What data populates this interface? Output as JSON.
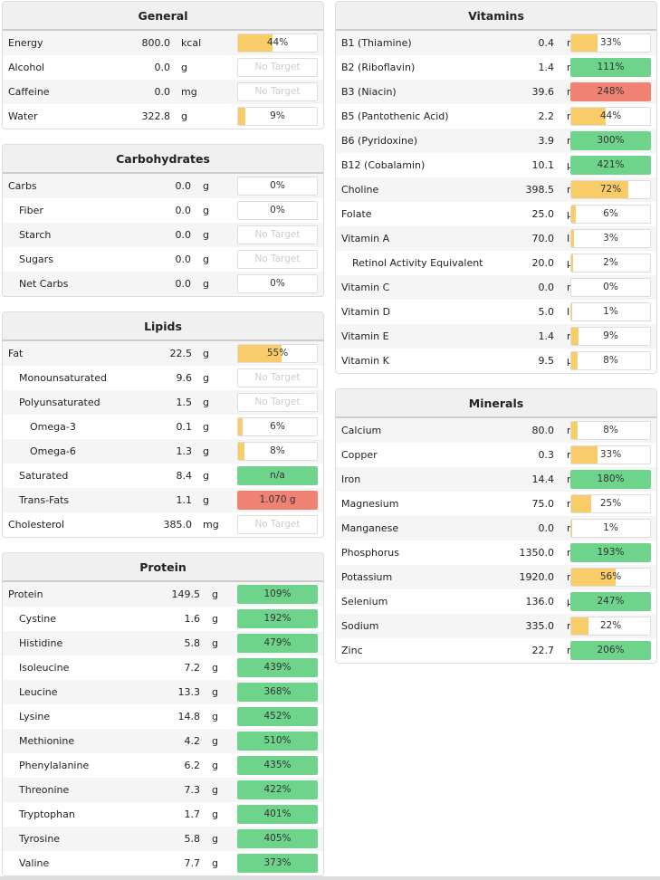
{
  "colors": {
    "under": "#f9cc6a",
    "met": "#6fd48b",
    "over": "#f08273"
  },
  "panels": [
    {
      "id": "general",
      "title": "General",
      "col": "left",
      "top": 1,
      "valEnd": 185,
      "unitX": 197,
      "rows": [
        {
          "name": "Energy",
          "value": "800.0",
          "unit": "kcal",
          "label": "44%",
          "pct": 44,
          "status": "under"
        },
        {
          "name": "Alcohol",
          "value": "0.0",
          "unit": "g",
          "label": "No Target",
          "pct": null
        },
        {
          "name": "Caffeine",
          "value": "0.0",
          "unit": "mg",
          "label": "No Target",
          "pct": null
        },
        {
          "name": "Water",
          "value": "322.8",
          "unit": "g",
          "label": "9%",
          "pct": 9,
          "status": "under"
        }
      ]
    },
    {
      "id": "carbohydrates",
      "title": "Carbohydrates",
      "col": "left",
      "top": 159,
      "valEnd": 208,
      "unitX": 221,
      "rows": [
        {
          "name": "Carbs",
          "value": "0.0",
          "unit": "g",
          "label": "0%",
          "pct": 0,
          "status": "under"
        },
        {
          "name": "Fiber",
          "indent": 1,
          "value": "0.0",
          "unit": "g",
          "label": "0%",
          "pct": 0,
          "status": "under"
        },
        {
          "name": "Starch",
          "indent": 1,
          "value": "0.0",
          "unit": "g",
          "label": "No Target",
          "pct": null
        },
        {
          "name": "Sugars",
          "indent": 1,
          "value": "0.0",
          "unit": "g",
          "label": "No Target",
          "pct": null
        },
        {
          "name": "Net Carbs",
          "indent": 1,
          "value": "0.0",
          "unit": "g",
          "label": "0%",
          "pct": 0,
          "status": "under"
        }
      ]
    },
    {
      "id": "lipids",
      "title": "Lipids",
      "col": "left",
      "top": 344,
      "valEnd": 209,
      "unitX": 221,
      "rows": [
        {
          "name": "Fat",
          "value": "22.5",
          "unit": "g",
          "label": "55%",
          "pct": 55,
          "status": "under"
        },
        {
          "name": "Monounsaturated",
          "indent": 1,
          "value": "9.6",
          "unit": "g",
          "label": "No Target",
          "pct": null
        },
        {
          "name": "Polyunsaturated",
          "indent": 1,
          "value": "1.5",
          "unit": "g",
          "label": "No Target",
          "pct": null
        },
        {
          "name": "Omega-3",
          "indent": 2,
          "value": "0.1",
          "unit": "g",
          "label": "6%",
          "pct": 6,
          "status": "under"
        },
        {
          "name": "Omega-6",
          "indent": 2,
          "value": "1.3",
          "unit": "g",
          "label": "8%",
          "pct": 8,
          "status": "under"
        },
        {
          "name": "Saturated",
          "indent": 1,
          "value": "8.4",
          "unit": "g",
          "label": "n/a",
          "pct": 100,
          "status": "met"
        },
        {
          "name": "Trans-Fats",
          "indent": 1,
          "value": "1.1",
          "unit": "g",
          "label": "1.070 g",
          "pct": 100,
          "status": "over"
        },
        {
          "name": "Cholesterol",
          "value": "385.0",
          "unit": "mg",
          "label": "No Target",
          "pct": null
        }
      ]
    },
    {
      "id": "protein",
      "title": "Protein",
      "col": "left",
      "top": 610,
      "valEnd": 218,
      "unitX": 231,
      "rows": [
        {
          "name": "Protein",
          "value": "149.5",
          "unit": "g",
          "label": "109%",
          "pct": 100,
          "status": "met"
        },
        {
          "name": "Cystine",
          "indent": 1,
          "value": "1.6",
          "unit": "g",
          "label": "192%",
          "pct": 100,
          "status": "met"
        },
        {
          "name": "Histidine",
          "indent": 1,
          "value": "5.8",
          "unit": "g",
          "label": "479%",
          "pct": 100,
          "status": "met"
        },
        {
          "name": "Isoleucine",
          "indent": 1,
          "value": "7.2",
          "unit": "g",
          "label": "439%",
          "pct": 100,
          "status": "met"
        },
        {
          "name": "Leucine",
          "indent": 1,
          "value": "13.3",
          "unit": "g",
          "label": "368%",
          "pct": 100,
          "status": "met"
        },
        {
          "name": "Lysine",
          "indent": 1,
          "value": "14.8",
          "unit": "g",
          "label": "452%",
          "pct": 100,
          "status": "met"
        },
        {
          "name": "Methionine",
          "indent": 1,
          "value": "4.2",
          "unit": "g",
          "label": "510%",
          "pct": 100,
          "status": "met"
        },
        {
          "name": "Phenylalanine",
          "indent": 1,
          "value": "6.2",
          "unit": "g",
          "label": "435%",
          "pct": 100,
          "status": "met"
        },
        {
          "name": "Threonine",
          "indent": 1,
          "value": "7.3",
          "unit": "g",
          "label": "422%",
          "pct": 100,
          "status": "met"
        },
        {
          "name": "Tryptophan",
          "indent": 1,
          "value": "1.7",
          "unit": "g",
          "label": "401%",
          "pct": 100,
          "status": "met"
        },
        {
          "name": "Tyrosine",
          "indent": 1,
          "value": "5.8",
          "unit": "g",
          "label": "405%",
          "pct": 100,
          "status": "met"
        },
        {
          "name": "Valine",
          "indent": 1,
          "value": "7.7",
          "unit": "g",
          "label": "373%",
          "pct": 100,
          "status": "met"
        }
      ]
    },
    {
      "id": "vitamins",
      "title": "Vitamins",
      "col": "right",
      "top": 1,
      "valEnd": 241,
      "unitX": 255,
      "rows": [
        {
          "name": "B1 (Thiamine)",
          "value": "0.4",
          "unit": "mg",
          "label": "33%",
          "pct": 33,
          "status": "under"
        },
        {
          "name": "B2 (Riboflavin)",
          "value": "1.4",
          "unit": "mg",
          "label": "111%",
          "pct": 100,
          "status": "met"
        },
        {
          "name": "B3 (Niacin)",
          "value": "39.6",
          "unit": "mg",
          "label": "248%",
          "pct": 100,
          "status": "over"
        },
        {
          "name": "B5 (Pantothenic Acid)",
          "value": "2.2",
          "unit": "mg",
          "label": "44%",
          "pct": 44,
          "status": "under"
        },
        {
          "name": "B6 (Pyridoxine)",
          "value": "3.9",
          "unit": "mg",
          "label": "300%",
          "pct": 100,
          "status": "met"
        },
        {
          "name": "B12 (Cobalamin)",
          "value": "10.1",
          "unit": "µg",
          "label": "421%",
          "pct": 100,
          "status": "met"
        },
        {
          "name": "Choline",
          "value": "398.5",
          "unit": "mg",
          "label": "72%",
          "pct": 72,
          "status": "under"
        },
        {
          "name": "Folate",
          "value": "25.0",
          "unit": "µg",
          "label": "6%",
          "pct": 6,
          "status": "under"
        },
        {
          "name": "Vitamin A",
          "value": "70.0",
          "unit": "IU",
          "label": "3%",
          "pct": 3,
          "status": "under"
        },
        {
          "name": "Retinol Activity Equivalent",
          "indent": 1,
          "value": "20.0",
          "unit": "µg",
          "label": "2%",
          "pct": 2,
          "status": "under"
        },
        {
          "name": "Vitamin C",
          "value": "0.0",
          "unit": "mg",
          "label": "0%",
          "pct": 0,
          "status": "under"
        },
        {
          "name": "Vitamin D",
          "value": "5.0",
          "unit": "IU",
          "label": "1%",
          "pct": 1,
          "status": "under"
        },
        {
          "name": "Vitamin E",
          "value": "1.4",
          "unit": "mg",
          "label": "9%",
          "pct": 9,
          "status": "under"
        },
        {
          "name": "Vitamin K",
          "value": "9.5",
          "unit": "µg",
          "label": "8%",
          "pct": 8,
          "status": "under"
        }
      ]
    },
    {
      "id": "minerals",
      "title": "Minerals",
      "col": "right",
      "top": 429,
      "valEnd": 241,
      "unitX": 255,
      "rows": [
        {
          "name": "Calcium",
          "value": "80.0",
          "unit": "mg",
          "label": "8%",
          "pct": 8,
          "status": "under"
        },
        {
          "name": "Copper",
          "value": "0.3",
          "unit": "mg",
          "label": "33%",
          "pct": 33,
          "status": "under"
        },
        {
          "name": "Iron",
          "value": "14.4",
          "unit": "mg",
          "label": "180%",
          "pct": 100,
          "status": "met"
        },
        {
          "name": "Magnesium",
          "value": "75.0",
          "unit": "mg",
          "label": "25%",
          "pct": 25,
          "status": "under"
        },
        {
          "name": "Manganese",
          "value": "0.0",
          "unit": "mg",
          "label": "1%",
          "pct": 1,
          "status": "under"
        },
        {
          "name": "Phosphorus",
          "value": "1350.0",
          "unit": "mg",
          "label": "193%",
          "pct": 100,
          "status": "met"
        },
        {
          "name": "Potassium",
          "value": "1920.0",
          "unit": "mg",
          "label": "56%",
          "pct": 56,
          "status": "under"
        },
        {
          "name": "Selenium",
          "value": "136.0",
          "unit": "µg",
          "label": "247%",
          "pct": 100,
          "status": "met"
        },
        {
          "name": "Sodium",
          "value": "335.0",
          "unit": "mg",
          "label": "22%",
          "pct": 22,
          "status": "under"
        },
        {
          "name": "Zinc",
          "value": "22.7",
          "unit": "mg",
          "label": "206%",
          "pct": 100,
          "status": "met"
        }
      ]
    }
  ]
}
